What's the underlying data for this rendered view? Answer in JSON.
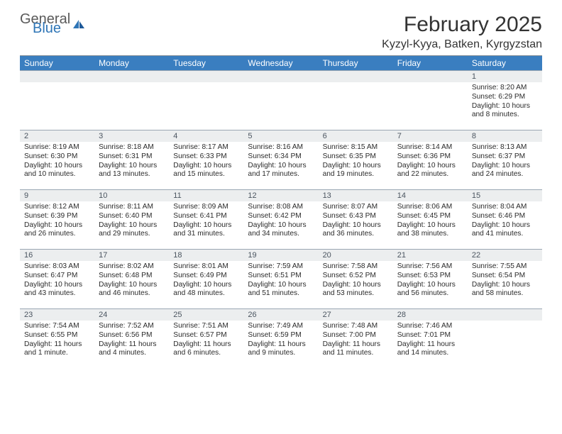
{
  "brand": {
    "general": "General",
    "blue": "Blue"
  },
  "title": "February 2025",
  "location": "Kyzyl-Kyya, Batken, Kyrgyzstan",
  "dayHeaders": [
    "Sunday",
    "Monday",
    "Tuesday",
    "Wednesday",
    "Thursday",
    "Friday",
    "Saturday"
  ],
  "colors": {
    "header_bg": "#3a7ec0",
    "header_text": "#ffffff",
    "daynum_bg": "#eceeef",
    "daynum_text": "#4b5560",
    "body_text": "#2b2b2b",
    "border": "#9aa7b3",
    "logo_blue": "#2e75b6",
    "logo_gray": "#5a5a5a"
  },
  "weeks": [
    [
      {
        "n": "",
        "lines": []
      },
      {
        "n": "",
        "lines": []
      },
      {
        "n": "",
        "lines": []
      },
      {
        "n": "",
        "lines": []
      },
      {
        "n": "",
        "lines": []
      },
      {
        "n": "",
        "lines": []
      },
      {
        "n": "1",
        "lines": [
          "Sunrise: 8:20 AM",
          "Sunset: 6:29 PM",
          "Daylight: 10 hours and 8 minutes."
        ]
      }
    ],
    [
      {
        "n": "2",
        "lines": [
          "Sunrise: 8:19 AM",
          "Sunset: 6:30 PM",
          "Daylight: 10 hours and 10 minutes."
        ]
      },
      {
        "n": "3",
        "lines": [
          "Sunrise: 8:18 AM",
          "Sunset: 6:31 PM",
          "Daylight: 10 hours and 13 minutes."
        ]
      },
      {
        "n": "4",
        "lines": [
          "Sunrise: 8:17 AM",
          "Sunset: 6:33 PM",
          "Daylight: 10 hours and 15 minutes."
        ]
      },
      {
        "n": "5",
        "lines": [
          "Sunrise: 8:16 AM",
          "Sunset: 6:34 PM",
          "Daylight: 10 hours and 17 minutes."
        ]
      },
      {
        "n": "6",
        "lines": [
          "Sunrise: 8:15 AM",
          "Sunset: 6:35 PM",
          "Daylight: 10 hours and 19 minutes."
        ]
      },
      {
        "n": "7",
        "lines": [
          "Sunrise: 8:14 AM",
          "Sunset: 6:36 PM",
          "Daylight: 10 hours and 22 minutes."
        ]
      },
      {
        "n": "8",
        "lines": [
          "Sunrise: 8:13 AM",
          "Sunset: 6:37 PM",
          "Daylight: 10 hours and 24 minutes."
        ]
      }
    ],
    [
      {
        "n": "9",
        "lines": [
          "Sunrise: 8:12 AM",
          "Sunset: 6:39 PM",
          "Daylight: 10 hours and 26 minutes."
        ]
      },
      {
        "n": "10",
        "lines": [
          "Sunrise: 8:11 AM",
          "Sunset: 6:40 PM",
          "Daylight: 10 hours and 29 minutes."
        ]
      },
      {
        "n": "11",
        "lines": [
          "Sunrise: 8:09 AM",
          "Sunset: 6:41 PM",
          "Daylight: 10 hours and 31 minutes."
        ]
      },
      {
        "n": "12",
        "lines": [
          "Sunrise: 8:08 AM",
          "Sunset: 6:42 PM",
          "Daylight: 10 hours and 34 minutes."
        ]
      },
      {
        "n": "13",
        "lines": [
          "Sunrise: 8:07 AM",
          "Sunset: 6:43 PM",
          "Daylight: 10 hours and 36 minutes."
        ]
      },
      {
        "n": "14",
        "lines": [
          "Sunrise: 8:06 AM",
          "Sunset: 6:45 PM",
          "Daylight: 10 hours and 38 minutes."
        ]
      },
      {
        "n": "15",
        "lines": [
          "Sunrise: 8:04 AM",
          "Sunset: 6:46 PM",
          "Daylight: 10 hours and 41 minutes."
        ]
      }
    ],
    [
      {
        "n": "16",
        "lines": [
          "Sunrise: 8:03 AM",
          "Sunset: 6:47 PM",
          "Daylight: 10 hours and 43 minutes."
        ]
      },
      {
        "n": "17",
        "lines": [
          "Sunrise: 8:02 AM",
          "Sunset: 6:48 PM",
          "Daylight: 10 hours and 46 minutes."
        ]
      },
      {
        "n": "18",
        "lines": [
          "Sunrise: 8:01 AM",
          "Sunset: 6:49 PM",
          "Daylight: 10 hours and 48 minutes."
        ]
      },
      {
        "n": "19",
        "lines": [
          "Sunrise: 7:59 AM",
          "Sunset: 6:51 PM",
          "Daylight: 10 hours and 51 minutes."
        ]
      },
      {
        "n": "20",
        "lines": [
          "Sunrise: 7:58 AM",
          "Sunset: 6:52 PM",
          "Daylight: 10 hours and 53 minutes."
        ]
      },
      {
        "n": "21",
        "lines": [
          "Sunrise: 7:56 AM",
          "Sunset: 6:53 PM",
          "Daylight: 10 hours and 56 minutes."
        ]
      },
      {
        "n": "22",
        "lines": [
          "Sunrise: 7:55 AM",
          "Sunset: 6:54 PM",
          "Daylight: 10 hours and 58 minutes."
        ]
      }
    ],
    [
      {
        "n": "23",
        "lines": [
          "Sunrise: 7:54 AM",
          "Sunset: 6:55 PM",
          "Daylight: 11 hours and 1 minute."
        ]
      },
      {
        "n": "24",
        "lines": [
          "Sunrise: 7:52 AM",
          "Sunset: 6:56 PM",
          "Daylight: 11 hours and 4 minutes."
        ]
      },
      {
        "n": "25",
        "lines": [
          "Sunrise: 7:51 AM",
          "Sunset: 6:57 PM",
          "Daylight: 11 hours and 6 minutes."
        ]
      },
      {
        "n": "26",
        "lines": [
          "Sunrise: 7:49 AM",
          "Sunset: 6:59 PM",
          "Daylight: 11 hours and 9 minutes."
        ]
      },
      {
        "n": "27",
        "lines": [
          "Sunrise: 7:48 AM",
          "Sunset: 7:00 PM",
          "Daylight: 11 hours and 11 minutes."
        ]
      },
      {
        "n": "28",
        "lines": [
          "Sunrise: 7:46 AM",
          "Sunset: 7:01 PM",
          "Daylight: 11 hours and 14 minutes."
        ]
      },
      {
        "n": "",
        "lines": []
      }
    ]
  ]
}
